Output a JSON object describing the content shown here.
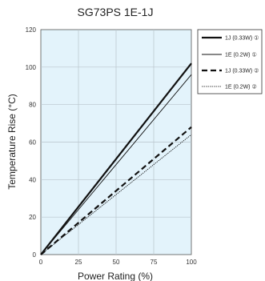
{
  "chart_data": {
    "type": "line",
    "title": "SG73PS 1E-1J",
    "xlabel": "Power Rating (%)",
    "ylabel": "Temperature Rise (°C)",
    "xlim": [
      0,
      100
    ],
    "ylim": [
      0,
      120
    ],
    "x_ticks": [
      "0",
      "25",
      "50",
      "75",
      "100"
    ],
    "y_ticks": [
      "0",
      "20",
      "40",
      "60",
      "80",
      "100",
      "120"
    ],
    "grid": true,
    "background": "#e3f3fb",
    "legend_position": "right",
    "series": [
      {
        "name": "1J (0.33W) ①",
        "style": "thick-solid",
        "x": [
          0,
          100
        ],
        "y": [
          0,
          102
        ]
      },
      {
        "name": "1E (0.2W) ①",
        "style": "thin-solid",
        "x": [
          0,
          100
        ],
        "y": [
          0,
          96
        ]
      },
      {
        "name": "1J (0.33W) ②",
        "style": "thick-dashed",
        "x": [
          0,
          100
        ],
        "y": [
          0,
          68
        ]
      },
      {
        "name": "1E (0.2W) ②",
        "style": "thin-dotted",
        "x": [
          0,
          100
        ],
        "y": [
          0,
          64
        ]
      }
    ]
  }
}
